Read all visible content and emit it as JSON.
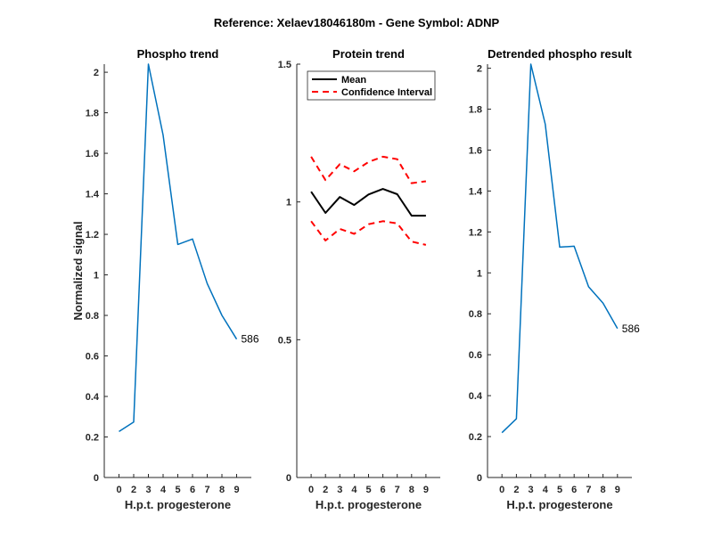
{
  "chart_data": {
    "title": "Reference:  Xelaev18046180m - Gene Symbol:  ADNP",
    "panels": [
      {
        "type": "line",
        "title": "Phospho trend",
        "xlabel": "H.p.t. progesterone",
        "ylabel": "Normalized signal",
        "categories": [
          "0",
          "2",
          "3",
          "4",
          "5",
          "6",
          "7",
          "8",
          "9"
        ],
        "ylim": [
          0,
          2.04
        ],
        "yticks": [
          "0",
          "0.2",
          "0.4",
          "0.6",
          "0.8",
          "1",
          "1.2",
          "1.4",
          "1.6",
          "1.8",
          "2"
        ],
        "ytick_values": [
          0,
          0.2,
          0.4,
          0.6,
          0.8,
          1,
          1.2,
          1.4,
          1.6,
          1.8,
          2
        ],
        "series": [
          {
            "name": "586",
            "color": "#0072BD",
            "values": [
              0.227,
              0.274,
              2.04,
              1.69,
              1.15,
              1.177,
              0.957,
              0.8,
              0.683
            ]
          }
        ],
        "annotation": "586"
      },
      {
        "type": "line",
        "title": "Protein trend",
        "xlabel": "H.p.t. progesterone",
        "ylabel": "",
        "categories": [
          "0",
          "2",
          "3",
          "4",
          "5",
          "6",
          "7",
          "8",
          "9"
        ],
        "ylim": [
          0,
          1.5
        ],
        "yticks": [
          "0",
          "0.5",
          "1",
          "1.5"
        ],
        "ytick_values": [
          0,
          0.5,
          1,
          1.5
        ],
        "legend": {
          "placement": "top-right",
          "entries": [
            "Mean",
            "Confidence Interval"
          ]
        },
        "series": [
          {
            "name": "Mean",
            "color": "#000000",
            "style": "solid",
            "values": [
              1.037,
              0.96,
              1.018,
              0.989,
              1.027,
              1.047,
              1.028,
              0.95,
              0.95
            ]
          },
          {
            "name": "Confidence Interval (upper)",
            "color": "#FF0000",
            "style": "dashed",
            "values": [
              1.164,
              1.079,
              1.137,
              1.111,
              1.145,
              1.164,
              1.155,
              1.068,
              1.075
            ]
          },
          {
            "name": "Confidence Interval (lower)",
            "color": "#FF0000",
            "style": "dashed",
            "values": [
              0.93,
              0.86,
              0.902,
              0.884,
              0.919,
              0.93,
              0.922,
              0.856,
              0.844
            ]
          }
        ]
      },
      {
        "type": "line",
        "title": "Detrended phospho result",
        "xlabel": "H.p.t. progesterone",
        "ylabel": "",
        "categories": [
          "0",
          "2",
          "3",
          "4",
          "5",
          "6",
          "7",
          "8",
          "9"
        ],
        "ylim": [
          0,
          2.02
        ],
        "yticks": [
          "0",
          "0.2",
          "0.4",
          "0.6",
          "0.8",
          "1",
          "1.2",
          "1.4",
          "1.6",
          "1.8",
          "2"
        ],
        "ytick_values": [
          0,
          0.2,
          0.4,
          0.6,
          0.8,
          1,
          1.2,
          1.4,
          1.6,
          1.8,
          2
        ],
        "series": [
          {
            "name": "586",
            "color": "#0072BD",
            "values": [
              0.219,
              0.287,
              2.02,
              1.726,
              1.126,
              1.13,
              0.932,
              0.852,
              0.728
            ]
          }
        ],
        "annotation": "586"
      }
    ]
  }
}
